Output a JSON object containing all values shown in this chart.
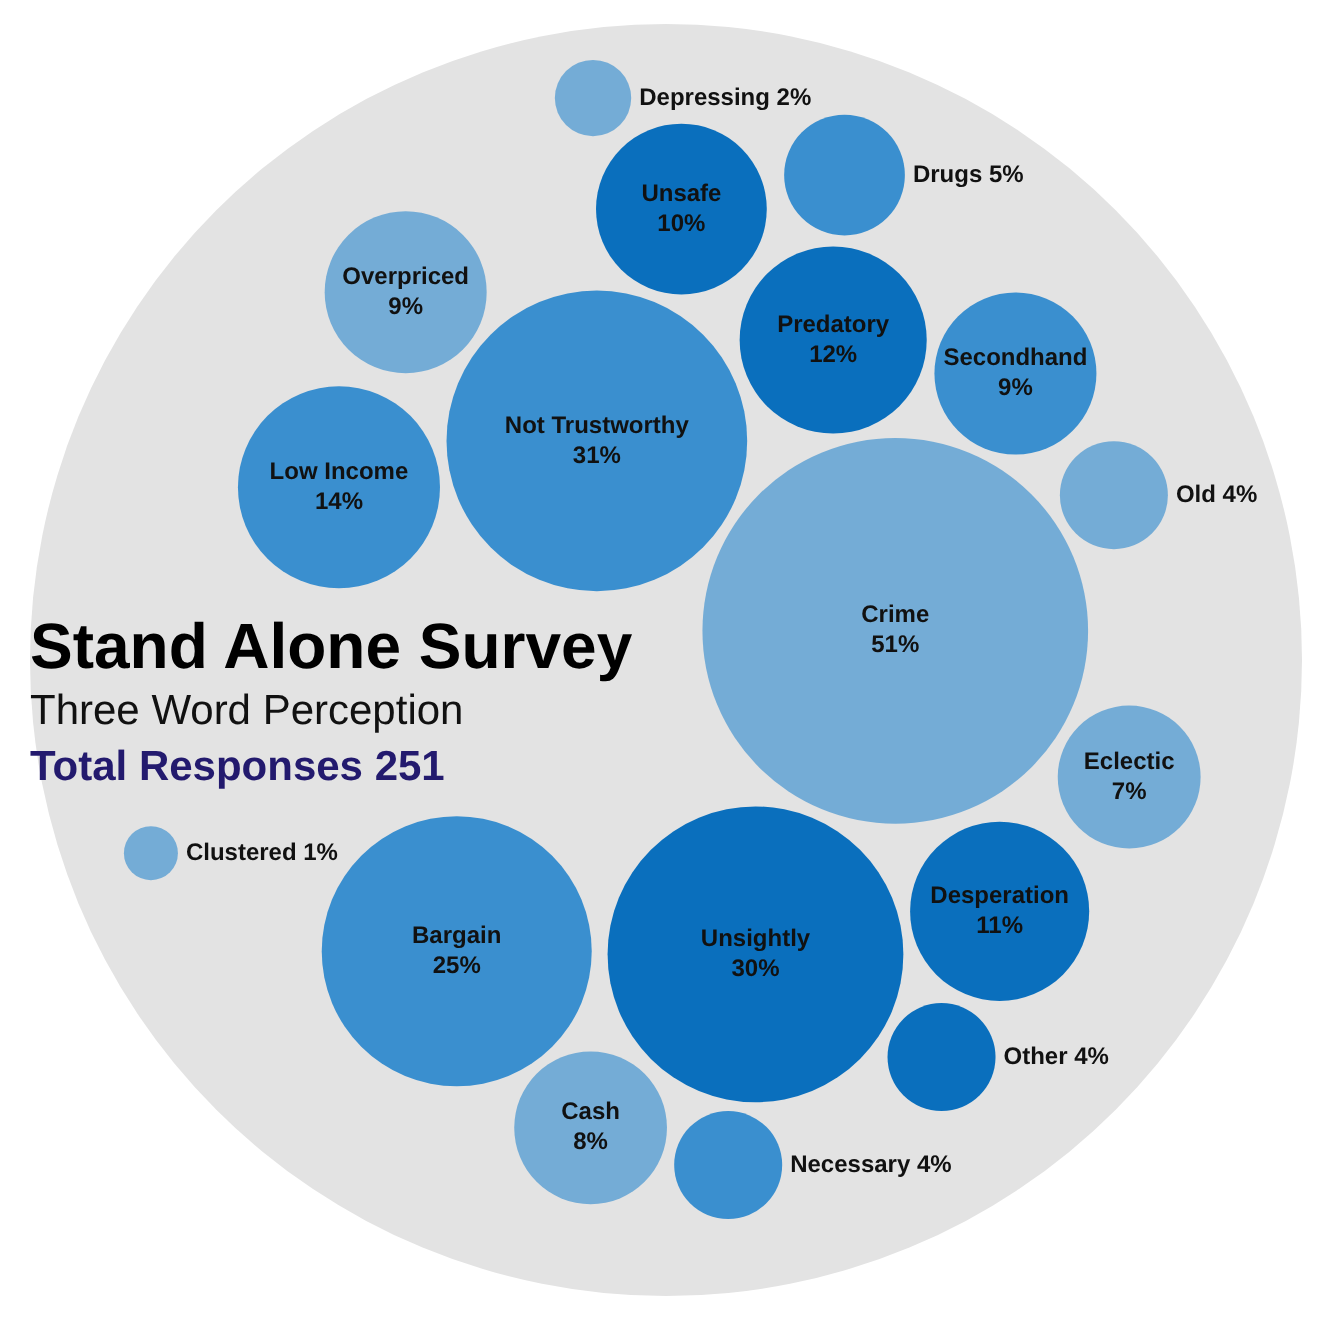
{
  "chart_data": {
    "type": "other",
    "title": "Stand Alone Survey",
    "subtitle": "Three Word Perception",
    "annotations": [
      "Total Responses 251"
    ],
    "categories": [
      "Crime",
      "Not Trustworthy",
      "Unsightly",
      "Bargain",
      "Low Income",
      "Predatory",
      "Desperation",
      "Unsafe",
      "Overpriced",
      "Secondhand",
      "Cash",
      "Eclectic",
      "Drugs",
      "Necessary",
      "Other",
      "Old",
      "Depressing",
      "Clustered"
    ],
    "values": [
      51,
      31,
      30,
      25,
      14,
      12,
      11,
      10,
      9,
      9,
      8,
      7,
      5,
      4,
      4,
      4,
      2,
      1
    ],
    "value_labels": [
      "51%",
      "31%",
      "30%",
      "25%",
      "14%",
      "12%",
      "11%",
      "10%",
      "9%",
      "9%",
      "8%",
      "7%",
      "5%",
      "4%",
      "4%",
      "4%",
      "2%",
      "1%"
    ],
    "colors": [
      "#74acd6",
      "#3a8fcf",
      "#0a6fbd",
      "#3a8fcf",
      "#3a8fcf",
      "#0a6fbd",
      "#0a6fbd",
      "#0a6fbd",
      "#74acd6",
      "#3a8fcf",
      "#74acd6",
      "#74acd6",
      "#3a8fcf",
      "#3a8fcf",
      "#0a6fbd",
      "#74acd6",
      "#74acd6",
      "#74acd6"
    ]
  }
}
